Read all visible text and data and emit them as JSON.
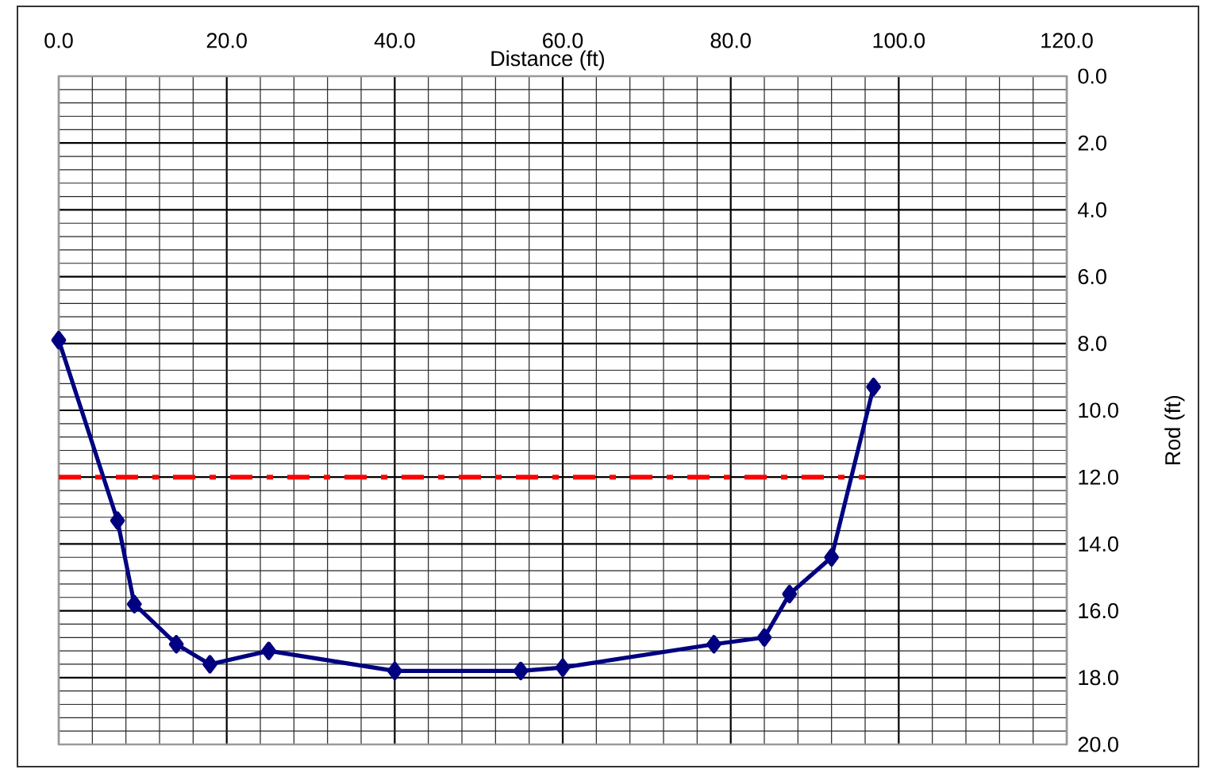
{
  "chart_data": {
    "type": "line",
    "xlabel": "Distance (ft)",
    "ylabel": "Rod (ft)",
    "xlim": [
      0,
      120
    ],
    "ylim": [
      20,
      0
    ],
    "xticks": [
      {
        "value": 0,
        "label": "0.0"
      },
      {
        "value": 20,
        "label": "20.0"
      },
      {
        "value": 40,
        "label": "40.0"
      },
      {
        "value": 60,
        "label": "60.0"
      },
      {
        "value": 80,
        "label": "80.0"
      },
      {
        "value": 100,
        "label": "100.0"
      },
      {
        "value": 120,
        "label": "120.0"
      }
    ],
    "yticks": [
      {
        "value": 0,
        "label": "0.0"
      },
      {
        "value": 2,
        "label": "2.0"
      },
      {
        "value": 4,
        "label": "4.0"
      },
      {
        "value": 6,
        "label": "6.0"
      },
      {
        "value": 8,
        "label": "8.0"
      },
      {
        "value": 10,
        "label": "10.0"
      },
      {
        "value": 12,
        "label": "12.0"
      },
      {
        "value": 14,
        "label": "14.0"
      },
      {
        "value": 16,
        "label": "16.0"
      },
      {
        "value": 18,
        "label": "18.0"
      },
      {
        "value": 20,
        "label": "20.0"
      }
    ],
    "grid": true,
    "series": [
      {
        "color": "#000080",
        "marker": "diamond",
        "line_style": "solid",
        "x": [
          0,
          7,
          9,
          14,
          18,
          25,
          40,
          55,
          60,
          78,
          84,
          87,
          92,
          97
        ],
        "values": [
          7.9,
          13.3,
          15.8,
          17.0,
          17.6,
          17.2,
          17.8,
          17.8,
          17.7,
          17.0,
          16.8,
          15.5,
          14.4,
          9.3
        ]
      },
      {
        "color": "#ff0000",
        "marker": "none",
        "line_style": "dashed",
        "x": [
          0,
          96
        ],
        "values": [
          12,
          12
        ]
      }
    ]
  }
}
